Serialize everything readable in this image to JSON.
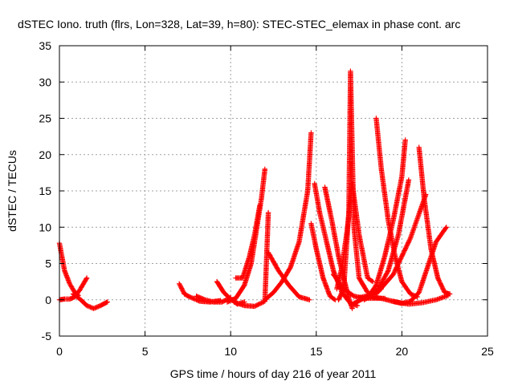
{
  "chart_data": {
    "type": "scatter",
    "title": "dSTEC Iono. truth (flrs, Lon=328, Lat=39, h=80): STEC-STEC_elemax in phase cont. arc",
    "xlabel": "GPS time / hours of day 216 of year 2011",
    "ylabel": "dSTEC  / TECUs",
    "xlim": [
      0,
      25
    ],
    "ylim": [
      -5,
      35
    ],
    "xticks": [
      "0",
      "5",
      "10",
      "15",
      "20",
      "25"
    ],
    "yticks": [
      "-5",
      "0",
      "5",
      "10",
      "15",
      "20",
      "25",
      "30",
      "35"
    ],
    "grid": true,
    "marker": "+",
    "color": "#ff0000",
    "series": [
      {
        "x": [
          0.0,
          0.3,
          0.6,
          0.9,
          1.1
        ],
        "y": [
          7.8,
          4.0,
          2.2,
          1.0,
          0.6
        ]
      },
      {
        "x": [
          0.0,
          0.3,
          0.6,
          0.9,
          1.2,
          1.6
        ],
        "y": [
          0.0,
          0.1,
          0.1,
          0.4,
          1.4,
          3.0
        ]
      },
      {
        "x": [
          0.8,
          1.2,
          1.6,
          2.0,
          2.4,
          2.8
        ],
        "y": [
          0.8,
          0.1,
          -0.8,
          -1.2,
          -0.8,
          -0.3
        ]
      },
      {
        "x": [
          7.0,
          7.3,
          7.6,
          8.2,
          8.8,
          9.4
        ],
        "y": [
          2.2,
          0.8,
          0.4,
          -0.2,
          -0.3,
          -0.1
        ]
      },
      {
        "x": [
          8.0,
          8.5,
          9.0,
          9.5,
          10.0
        ],
        "y": [
          0.5,
          0.0,
          -0.3,
          -0.3,
          0.3
        ]
      },
      {
        "x": [
          9.2,
          9.6,
          10.0,
          10.4,
          10.8
        ],
        "y": [
          2.5,
          1.0,
          0.1,
          -0.6,
          -0.3
        ]
      },
      {
        "x": [
          9.8,
          10.3,
          10.8,
          11.2,
          11.5,
          11.8,
          12.0
        ],
        "y": [
          -0.3,
          0.2,
          2.0,
          5.0,
          9.5,
          14.0,
          18.0
        ]
      },
      {
        "x": [
          10.3,
          10.7,
          11.1,
          11.4,
          11.7
        ],
        "y": [
          3.0,
          3.0,
          6.0,
          9.0,
          13.0
        ]
      },
      {
        "x": [
          10.2,
          10.8,
          11.4,
          12.0,
          12.2
        ],
        "y": [
          -0.3,
          -0.8,
          -0.9,
          -0.2,
          12.0
        ]
      },
      {
        "x": [
          12.0,
          12.5,
          13.0,
          13.5,
          14.0,
          14.5,
          14.7
        ],
        "y": [
          0.0,
          1.0,
          2.5,
          4.5,
          8.0,
          15.0,
          23.0
        ]
      },
      {
        "x": [
          12.2,
          12.8,
          13.4,
          14.0,
          14.6
        ],
        "y": [
          6.5,
          4.0,
          2.0,
          0.4,
          0.0
        ]
      },
      {
        "x": [
          14.7,
          15.0,
          15.4,
          15.8,
          16.1
        ],
        "y": [
          10.5,
          7.0,
          3.0,
          0.5,
          0.0
        ]
      },
      {
        "x": [
          14.9,
          15.2,
          15.6,
          16.0,
          16.5,
          17.0,
          17.4
        ],
        "y": [
          16.0,
          12.0,
          8.0,
          4.0,
          1.0,
          -0.5,
          -0.8
        ]
      },
      {
        "x": [
          15.5,
          15.9,
          16.3,
          16.6,
          16.9,
          17.1
        ],
        "y": [
          15.5,
          11.0,
          6.0,
          3.0,
          0.2,
          -1.2
        ]
      },
      {
        "x": [
          16.3,
          16.6,
          16.9,
          17.0,
          17.2,
          17.5,
          18.0
        ],
        "y": [
          0.0,
          1.5,
          12.0,
          31.5,
          10.0,
          3.0,
          1.0
        ]
      },
      {
        "x": [
          16.2,
          16.5,
          16.8,
          17.1,
          17.5,
          18.0,
          18.3
        ],
        "y": [
          1.5,
          4.5,
          9.5,
          16.0,
          9.0,
          3.0,
          2.5
        ]
      },
      {
        "x": [
          18.5,
          18.8,
          19.2,
          19.6,
          20.0,
          20.5,
          20.9
        ],
        "y": [
          25.0,
          18.0,
          11.0,
          6.0,
          2.5,
          0.8,
          0.4
        ]
      },
      {
        "x": [
          18.0,
          18.5,
          19.0,
          19.5,
          20.0,
          20.2
        ],
        "y": [
          0.3,
          2.0,
          6.0,
          11.0,
          17.0,
          22.0
        ]
      },
      {
        "x": [
          17.8,
          18.5,
          19.2,
          19.8,
          20.4
        ],
        "y": [
          0.0,
          1.0,
          4.0,
          9.0,
          16.5
        ]
      },
      {
        "x": [
          17.5,
          18.5,
          19.5,
          20.5,
          21.4
        ],
        "y": [
          0.3,
          0.8,
          3.5,
          8.5,
          14.5
        ]
      },
      {
        "x": [
          21.0,
          21.3,
          21.7,
          22.1,
          22.5,
          22.8
        ],
        "y": [
          21.0,
          14.0,
          7.0,
          3.0,
          1.0,
          0.8
        ]
      },
      {
        "x": [
          19.5,
          20.0,
          20.5,
          21.0,
          21.5,
          22.0,
          22.6
        ],
        "y": [
          -0.2,
          -0.5,
          -0.2,
          1.0,
          4.5,
          8.0,
          10.0
        ]
      },
      {
        "x": [
          18.0,
          18.8,
          19.6,
          20.4,
          21.2,
          22.0,
          22.7
        ],
        "y": [
          0.5,
          0.2,
          -0.3,
          -0.6,
          -0.4,
          0.0,
          0.6
        ]
      },
      {
        "x": [
          16.0,
          16.6,
          17.2,
          17.8,
          18.4,
          19.0
        ],
        "y": [
          3.5,
          1.5,
          0.5,
          0.2,
          0.2,
          0.2
        ]
      },
      {
        "x": [
          17.2,
          17.6,
          18.0,
          18.4,
          18.8
        ],
        "y": [
          -0.5,
          0.0,
          0.5,
          1.0,
          1.5
        ]
      }
    ]
  }
}
